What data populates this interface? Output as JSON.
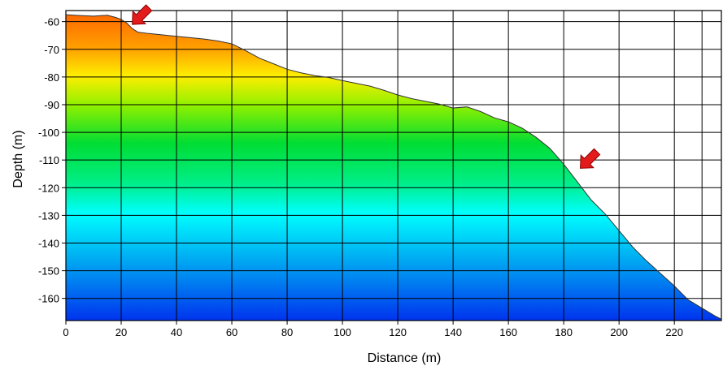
{
  "chart_data": {
    "type": "area",
    "title": "",
    "xlabel": "Distance (m)",
    "ylabel": "Depth (m)",
    "xlim": [
      0,
      237
    ],
    "ylim": [
      -168,
      -56
    ],
    "x_ticks": [
      0,
      20,
      40,
      60,
      80,
      100,
      120,
      140,
      160,
      180,
      200,
      220
    ],
    "y_ticks": [
      -60,
      -70,
      -80,
      -90,
      -100,
      -110,
      -120,
      -130,
      -140,
      -150,
      -160
    ],
    "x_tick_labels": [
      "0",
      "20",
      "40",
      "60",
      "80",
      "100",
      "120",
      "140",
      "160",
      "180",
      "200",
      "220"
    ],
    "y_tick_labels": [
      "-60",
      "-70",
      "-80",
      "-90",
      "-100",
      "-110",
      "-120",
      "-130",
      "-140",
      "-150",
      "-160"
    ],
    "grid": true,
    "fill": "depth color gradient (orange at top through yellow, green, cyan to blue at bottom)",
    "colors": {
      "orange": "#ff6a00",
      "yellow": "#ffee00",
      "green": "#00dd33",
      "cyan": "#00ffff",
      "blue": "#0033ee",
      "arrow": "#e41b1b",
      "profile_line": "#333333",
      "grid": "#000000"
    },
    "series": [
      {
        "x": [
          0,
          5,
          10,
          15,
          18,
          20,
          22,
          24,
          26,
          30,
          35,
          40,
          45,
          50,
          55,
          60,
          65,
          70,
          75,
          80,
          85,
          90,
          95,
          100,
          105,
          110,
          115,
          120,
          125,
          130,
          135,
          140,
          145,
          150,
          155,
          160,
          165,
          170,
          175,
          180,
          185,
          190,
          195,
          200,
          205,
          210,
          215,
          220,
          225,
          230,
          235,
          237
        ],
        "y": [
          -57.5,
          -57.8,
          -58,
          -57.7,
          -58.5,
          -59.2,
          -60.5,
          -62.5,
          -63.8,
          -64.3,
          -64.8,
          -65.3,
          -65.8,
          -66.3,
          -67,
          -68,
          -70.5,
          -73.2,
          -75.2,
          -77.2,
          -78.5,
          -79.5,
          -80.2,
          -81.3,
          -82.3,
          -83.3,
          -84.8,
          -86.5,
          -87.8,
          -88.8,
          -89.8,
          -91.2,
          -90.8,
          -92.5,
          -94.8,
          -96.2,
          -98.5,
          -101.8,
          -105.8,
          -111.5,
          -118,
          -124.5,
          -129.5,
          -135.5,
          -141.5,
          -146.5,
          -151,
          -155.5,
          -160.5,
          -163.5,
          -166.5,
          -167.5
        ]
      }
    ],
    "annotations": [
      {
        "type": "arrow",
        "points_to": {
          "x": 24,
          "y": -61
        }
      },
      {
        "type": "arrow",
        "points_to": {
          "x": 186,
          "y": -113
        }
      }
    ]
  }
}
